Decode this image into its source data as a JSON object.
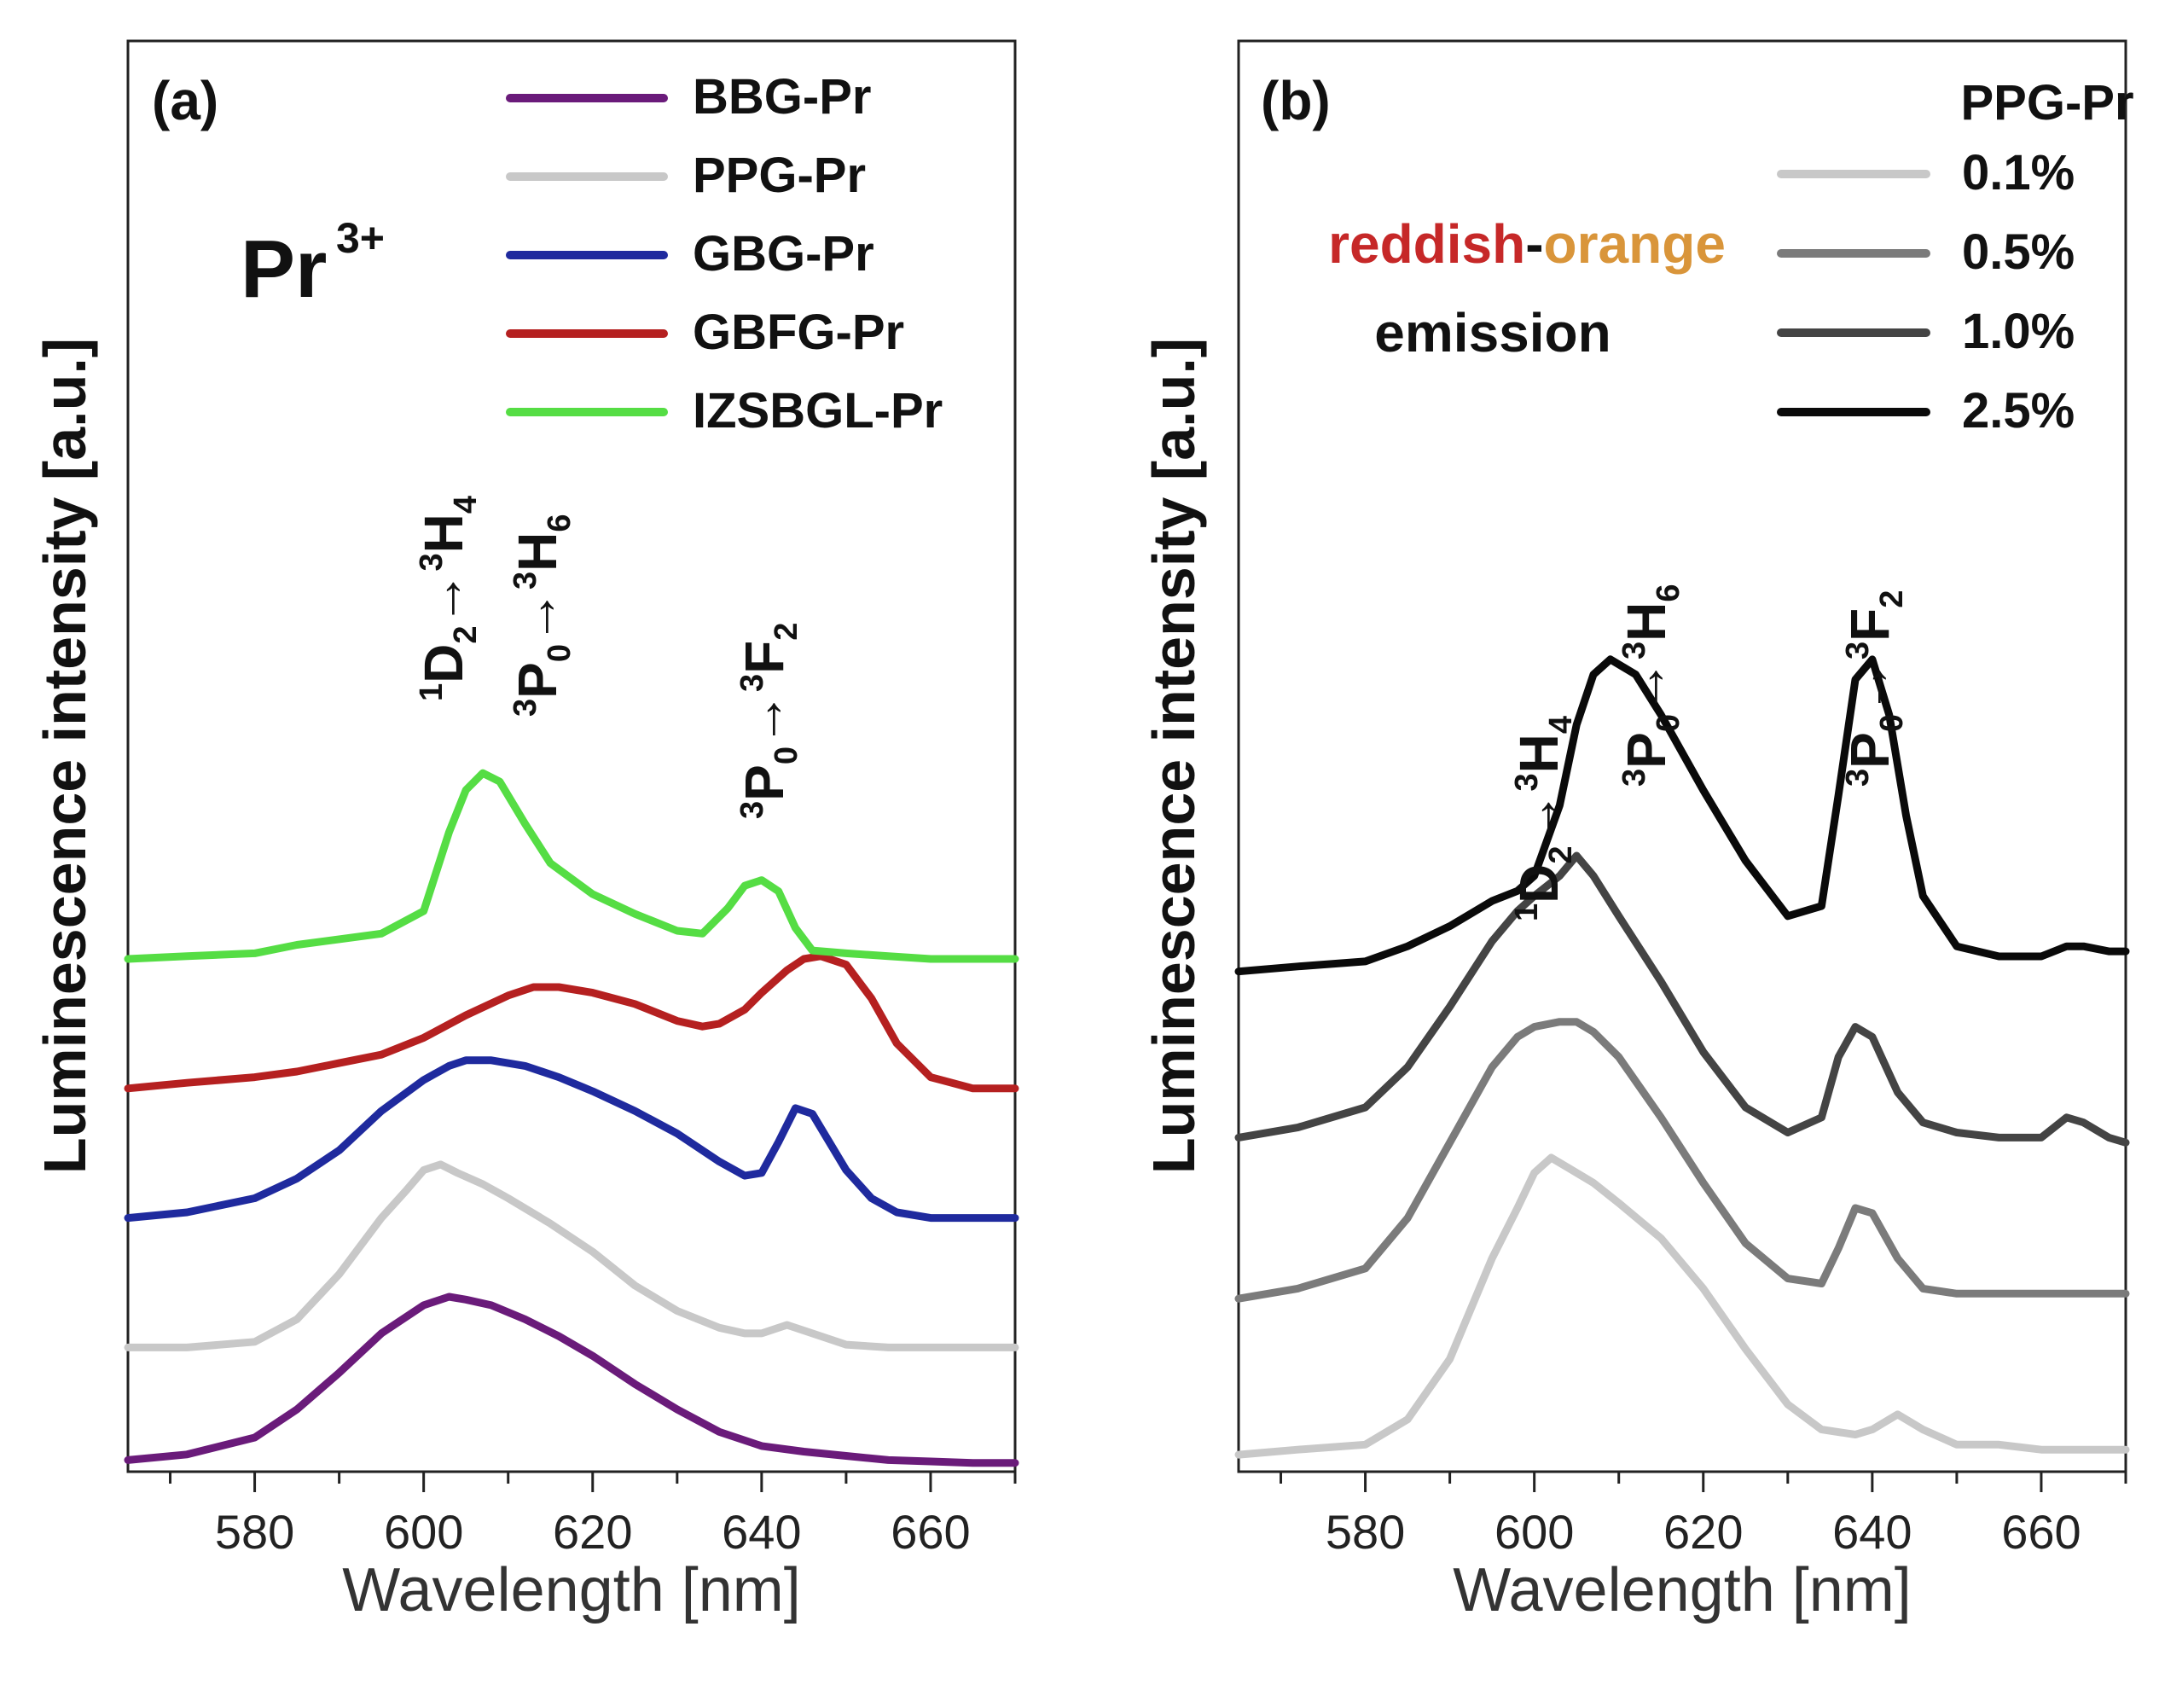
{
  "chart_data": [
    {
      "panel_label": "(a)",
      "type": "line",
      "xlabel": "Wavelength [nm]",
      "ylabel": "Luminescence intensity [a.u.]",
      "xlim": [
        565,
        670
      ],
      "xticks": [
        580,
        600,
        620,
        640,
        660
      ],
      "yticks_shown": false,
      "ion_label": "Pr",
      "ion_sup": "3+",
      "legend_position": "top-right",
      "annotations": [
        {
          "main": "D",
          "pre": "1",
          "sub": "2",
          "arrow": "→",
          "tsup": "3",
          "target": "H",
          "tsub": "4"
        },
        {
          "main": "P",
          "pre": "3",
          "sub": "0",
          "arrow": "→",
          "tsup": "3",
          "target": "H",
          "tsub": "6"
        },
        {
          "main": "P",
          "pre": "3",
          "sub": "0",
          "arrow": "→",
          "tsup": "3",
          "target": "F",
          "tsub": "2"
        }
      ],
      "series": [
        {
          "name": "BBG-Pr",
          "color": "#6a1b7a",
          "x": [
            565,
            572,
            580,
            585,
            590,
            595,
            600,
            603,
            605,
            608,
            612,
            616,
            620,
            625,
            630,
            635,
            640,
            645,
            650,
            655,
            660,
            665,
            670
          ],
          "y": [
            0.02,
            0.04,
            0.1,
            0.2,
            0.33,
            0.47,
            0.57,
            0.6,
            0.59,
            0.57,
            0.52,
            0.46,
            0.39,
            0.29,
            0.2,
            0.12,
            0.07,
            0.05,
            0.035,
            0.02,
            0.015,
            0.01,
            0.01
          ]
        },
        {
          "name": "PPG-Pr",
          "color": "#c8c8c8",
          "x": [
            565,
            572,
            580,
            585,
            590,
            595,
            598,
            600,
            602,
            604,
            607,
            610,
            615,
            620,
            625,
            630,
            635,
            638,
            640,
            643,
            646,
            650,
            655,
            660,
            665,
            670
          ],
          "y": [
            0.42,
            0.42,
            0.44,
            0.52,
            0.68,
            0.88,
            0.98,
            1.05,
            1.07,
            1.04,
            1.0,
            0.95,
            0.86,
            0.76,
            0.64,
            0.55,
            0.49,
            0.47,
            0.47,
            0.5,
            0.47,
            0.43,
            0.42,
            0.42,
            0.42,
            0.42
          ]
        },
        {
          "name": "GBG-Pr",
          "color": "#1f2a9e",
          "x": [
            565,
            572,
            580,
            585,
            590,
            595,
            600,
            603,
            605,
            608,
            612,
            616,
            620,
            625,
            630,
            635,
            638,
            640,
            642,
            644,
            646,
            648,
            650,
            653,
            656,
            660,
            665,
            670
          ],
          "y": [
            0.88,
            0.9,
            0.95,
            1.02,
            1.12,
            1.26,
            1.37,
            1.42,
            1.44,
            1.44,
            1.42,
            1.38,
            1.33,
            1.26,
            1.18,
            1.08,
            1.03,
            1.04,
            1.15,
            1.27,
            1.25,
            1.15,
            1.05,
            0.95,
            0.9,
            0.88,
            0.88,
            0.88
          ]
        },
        {
          "name": "GBFG-Pr",
          "color": "#b52020",
          "x": [
            565,
            572,
            580,
            585,
            590,
            595,
            600,
            605,
            610,
            613,
            616,
            620,
            625,
            630,
            633,
            635,
            638,
            640,
            643,
            645,
            647,
            650,
            653,
            656,
            660,
            665,
            670
          ],
          "y": [
            1.34,
            1.36,
            1.38,
            1.4,
            1.43,
            1.46,
            1.52,
            1.6,
            1.67,
            1.7,
            1.7,
            1.68,
            1.64,
            1.58,
            1.56,
            1.57,
            1.62,
            1.68,
            1.76,
            1.8,
            1.81,
            1.78,
            1.66,
            1.5,
            1.38,
            1.34,
            1.34
          ]
        },
        {
          "name": "IZSBGL-Pr",
          "color": "#55dd44",
          "x": [
            565,
            572,
            580,
            585,
            590,
            595,
            600,
            603,
            605,
            607,
            609,
            612,
            615,
            620,
            625,
            630,
            633,
            636,
            638,
            640,
            642,
            644,
            646,
            650,
            655,
            660,
            665,
            670
          ],
          "y": [
            1.8,
            1.81,
            1.82,
            1.85,
            1.87,
            1.89,
            1.97,
            2.25,
            2.4,
            2.46,
            2.43,
            2.28,
            2.14,
            2.03,
            1.96,
            1.9,
            1.89,
            1.98,
            2.06,
            2.08,
            2.04,
            1.91,
            1.83,
            1.82,
            1.81,
            1.8,
            1.8,
            1.8
          ]
        }
      ]
    },
    {
      "panel_label": "(b)",
      "type": "line",
      "xlabel": "Wavelength [nm]",
      "ylabel": "Luminescence intensity [a.u.]",
      "xlim": [
        565,
        670
      ],
      "xticks": [
        580,
        600,
        620,
        640,
        660
      ],
      "yticks_shown": false,
      "legend_title": "PPG-Pr",
      "legend_position": "top-right",
      "emission_label": {
        "part1": "reddish",
        "dash": "-",
        "part2": "orange",
        "line2": "emission",
        "color1": "#c62828",
        "color2": "#d9953a"
      },
      "annotations": [
        {
          "main": "D",
          "pre": "1",
          "sub": "2",
          "arrow": "→",
          "tsup": "3",
          "target": "H",
          "tsub": "4"
        },
        {
          "main": "P",
          "pre": "3",
          "sub": "0",
          "arrow": "→",
          "tsup": "3",
          "target": "H",
          "tsub": "6"
        },
        {
          "main": "P",
          "pre": "3",
          "sub": "0",
          "arrow": "→",
          "tsup": "3",
          "target": "F",
          "tsub": "2"
        }
      ],
      "series": [
        {
          "name": "0.1%",
          "color": "#c8c8c8",
          "x": [
            565,
            572,
            580,
            585,
            590,
            595,
            598,
            600,
            602,
            604,
            607,
            610,
            615,
            620,
            625,
            630,
            634,
            638,
            640,
            643,
            646,
            650,
            655,
            660,
            665,
            670
          ],
          "y": [
            0.01,
            0.02,
            0.03,
            0.08,
            0.2,
            0.4,
            0.5,
            0.57,
            0.6,
            0.58,
            0.55,
            0.51,
            0.44,
            0.34,
            0.22,
            0.11,
            0.06,
            0.05,
            0.06,
            0.09,
            0.06,
            0.03,
            0.03,
            0.02,
            0.02,
            0.02
          ]
        },
        {
          "name": "0.5%",
          "color": "#7b7b7b",
          "x": [
            565,
            572,
            580,
            585,
            590,
            595,
            598,
            600,
            603,
            605,
            607,
            610,
            615,
            620,
            625,
            630,
            634,
            636,
            638,
            640,
            643,
            646,
            650,
            655,
            660,
            665,
            670
          ],
          "y": [
            0.32,
            0.34,
            0.38,
            0.48,
            0.63,
            0.78,
            0.84,
            0.86,
            0.87,
            0.87,
            0.85,
            0.8,
            0.68,
            0.55,
            0.43,
            0.36,
            0.35,
            0.42,
            0.5,
            0.49,
            0.4,
            0.34,
            0.33,
            0.33,
            0.33,
            0.33,
            0.33
          ]
        },
        {
          "name": "1.0%",
          "color": "#444444",
          "x": [
            565,
            572,
            580,
            585,
            590,
            595,
            598,
            600,
            603,
            605,
            607,
            610,
            615,
            620,
            625,
            630,
            634,
            636,
            638,
            640,
            643,
            646,
            650,
            655,
            660,
            663,
            665,
            668,
            670
          ],
          "y": [
            0.64,
            0.66,
            0.7,
            0.78,
            0.9,
            1.03,
            1.09,
            1.12,
            1.16,
            1.2,
            1.16,
            1.08,
            0.95,
            0.81,
            0.7,
            0.65,
            0.68,
            0.8,
            0.86,
            0.84,
            0.73,
            0.67,
            0.65,
            0.64,
            0.64,
            0.68,
            0.67,
            0.64,
            0.63
          ]
        },
        {
          "name": "2.5%",
          "color": "#0a0a0a",
          "x": [
            565,
            572,
            580,
            585,
            590,
            595,
            598,
            600,
            603,
            605,
            607,
            609,
            612,
            615,
            620,
            625,
            630,
            634,
            636,
            638,
            640,
            642,
            644,
            646,
            650,
            655,
            660,
            663,
            665,
            668,
            670
          ],
          "y": [
            0.97,
            0.98,
            0.99,
            1.02,
            1.06,
            1.11,
            1.13,
            1.16,
            1.3,
            1.46,
            1.56,
            1.59,
            1.56,
            1.48,
            1.33,
            1.19,
            1.08,
            1.1,
            1.32,
            1.55,
            1.59,
            1.48,
            1.28,
            1.12,
            1.02,
            1.0,
            1.0,
            1.02,
            1.02,
            1.01,
            1.01
          ]
        }
      ]
    }
  ]
}
